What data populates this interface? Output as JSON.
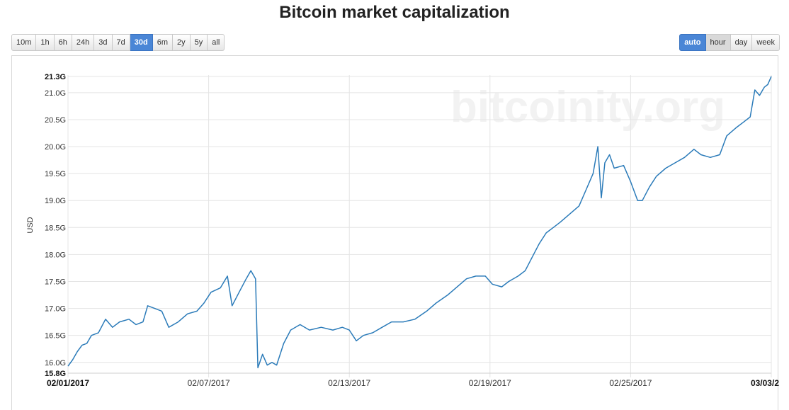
{
  "page": {
    "title": "Bitcoin market capitalization",
    "range_buttons": [
      {
        "label": "10m",
        "active": false
      },
      {
        "label": "1h",
        "active": false
      },
      {
        "label": "6h",
        "active": false
      },
      {
        "label": "24h",
        "active": false
      },
      {
        "label": "3d",
        "active": false
      },
      {
        "label": "7d",
        "active": false
      },
      {
        "label": "30d",
        "active": true
      },
      {
        "label": "6m",
        "active": false
      },
      {
        "label": "2y",
        "active": false
      },
      {
        "label": "5y",
        "active": false
      },
      {
        "label": "all",
        "active": false
      }
    ],
    "resolution_buttons": [
      {
        "label": "auto",
        "active": true
      },
      {
        "label": "hour",
        "active": false,
        "hover": true
      },
      {
        "label": "day",
        "active": false
      },
      {
        "label": "week",
        "active": false
      }
    ],
    "watermark": "bitcoinity.org"
  },
  "chart_data": {
    "type": "line",
    "title": "Bitcoin market capitalization",
    "ylabel": "USD",
    "xlabel": "",
    "ylim": [
      15.8,
      21.3
    ],
    "xlim": [
      0,
      30
    ],
    "y_unit_suffix": "G",
    "y_ticks": [
      {
        "value": 15.8,
        "label": "15.8G",
        "bold": true
      },
      {
        "value": 16.0,
        "label": "16.0G"
      },
      {
        "value": 16.5,
        "label": "16.5G"
      },
      {
        "value": 17.0,
        "label": "17.0G"
      },
      {
        "value": 17.5,
        "label": "17.5G"
      },
      {
        "value": 18.0,
        "label": "18.0G"
      },
      {
        "value": 18.5,
        "label": "18.5G"
      },
      {
        "value": 19.0,
        "label": "19.0G"
      },
      {
        "value": 19.5,
        "label": "19.5G"
      },
      {
        "value": 20.0,
        "label": "20.0G"
      },
      {
        "value": 20.5,
        "label": "20.5G"
      },
      {
        "value": 21.0,
        "label": "21.0G"
      },
      {
        "value": 21.3,
        "label": "21.3G",
        "bold": true
      }
    ],
    "x_ticks": [
      {
        "value": 0,
        "label": "02/01/2017",
        "bold": true
      },
      {
        "value": 6,
        "label": "02/07/2017"
      },
      {
        "value": 12,
        "label": "02/13/2017"
      },
      {
        "value": 18,
        "label": "02/19/2017"
      },
      {
        "value": 24,
        "label": "02/25/2017"
      },
      {
        "value": 30,
        "label": "03/03/2",
        "bold": true
      }
    ],
    "grid": true,
    "colors": {
      "line": "#2b7bb9",
      "grid": "#e4e4e4",
      "watermark": "#f2f2f2"
    },
    "series": [
      {
        "values": [
          [
            0.0,
            15.93
          ],
          [
            0.2,
            16.05
          ],
          [
            0.4,
            16.2
          ],
          [
            0.6,
            16.32
          ],
          [
            0.8,
            16.35
          ],
          [
            1.0,
            16.5
          ],
          [
            1.3,
            16.55
          ],
          [
            1.6,
            16.8
          ],
          [
            1.9,
            16.65
          ],
          [
            2.2,
            16.75
          ],
          [
            2.6,
            16.8
          ],
          [
            2.9,
            16.7
          ],
          [
            3.2,
            16.75
          ],
          [
            3.4,
            17.05
          ],
          [
            3.7,
            17.0
          ],
          [
            4.0,
            16.95
          ],
          [
            4.3,
            16.65
          ],
          [
            4.7,
            16.75
          ],
          [
            5.1,
            16.9
          ],
          [
            5.5,
            16.95
          ],
          [
            5.8,
            17.1
          ],
          [
            6.1,
            17.3
          ],
          [
            6.5,
            17.38
          ],
          [
            6.8,
            17.6
          ],
          [
            7.0,
            17.05
          ],
          [
            7.3,
            17.3
          ],
          [
            7.6,
            17.55
          ],
          [
            7.8,
            17.7
          ],
          [
            8.0,
            17.55
          ],
          [
            8.1,
            15.9
          ],
          [
            8.3,
            16.15
          ],
          [
            8.5,
            15.95
          ],
          [
            8.7,
            16.0
          ],
          [
            8.9,
            15.95
          ],
          [
            9.2,
            16.35
          ],
          [
            9.5,
            16.6
          ],
          [
            9.9,
            16.7
          ],
          [
            10.3,
            16.6
          ],
          [
            10.8,
            16.65
          ],
          [
            11.3,
            16.6
          ],
          [
            11.7,
            16.65
          ],
          [
            12.0,
            16.6
          ],
          [
            12.3,
            16.4
          ],
          [
            12.6,
            16.5
          ],
          [
            13.0,
            16.55
          ],
          [
            13.4,
            16.65
          ],
          [
            13.8,
            16.75
          ],
          [
            14.3,
            16.75
          ],
          [
            14.8,
            16.8
          ],
          [
            15.3,
            16.95
          ],
          [
            15.7,
            17.1
          ],
          [
            16.2,
            17.25
          ],
          [
            16.6,
            17.4
          ],
          [
            17.0,
            17.55
          ],
          [
            17.4,
            17.6
          ],
          [
            17.8,
            17.6
          ],
          [
            18.1,
            17.45
          ],
          [
            18.5,
            17.4
          ],
          [
            18.8,
            17.5
          ],
          [
            19.2,
            17.6
          ],
          [
            19.5,
            17.7
          ],
          [
            19.8,
            17.95
          ],
          [
            20.1,
            18.2
          ],
          [
            20.4,
            18.4
          ],
          [
            20.7,
            18.5
          ],
          [
            21.0,
            18.6
          ],
          [
            21.4,
            18.75
          ],
          [
            21.8,
            18.9
          ],
          [
            22.1,
            19.2
          ],
          [
            22.4,
            19.5
          ],
          [
            22.6,
            20.0
          ],
          [
            22.75,
            19.05
          ],
          [
            22.9,
            19.7
          ],
          [
            23.1,
            19.85
          ],
          [
            23.3,
            19.6
          ],
          [
            23.7,
            19.65
          ],
          [
            24.0,
            19.35
          ],
          [
            24.3,
            19.0
          ],
          [
            24.5,
            19.0
          ],
          [
            24.8,
            19.25
          ],
          [
            25.1,
            19.45
          ],
          [
            25.5,
            19.6
          ],
          [
            25.9,
            19.7
          ],
          [
            26.3,
            19.8
          ],
          [
            26.7,
            19.95
          ],
          [
            27.0,
            19.85
          ],
          [
            27.4,
            19.8
          ],
          [
            27.8,
            19.85
          ],
          [
            28.1,
            20.2
          ],
          [
            28.5,
            20.35
          ],
          [
            28.8,
            20.45
          ],
          [
            29.1,
            20.55
          ],
          [
            29.3,
            21.05
          ],
          [
            29.5,
            20.95
          ],
          [
            29.7,
            21.1
          ],
          [
            29.85,
            21.15
          ],
          [
            30.0,
            21.3
          ]
        ]
      }
    ]
  }
}
